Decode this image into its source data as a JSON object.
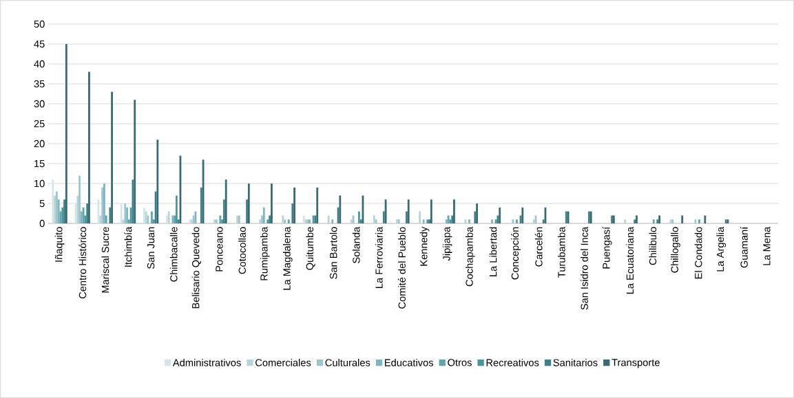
{
  "chart_data": {
    "type": "bar",
    "categories": [
      "Iñaquito",
      "Centro Histórico",
      "Mariscal Sucre",
      "Itchimbía",
      "San Juan",
      "Chimbacalle",
      "Belisario Quevedo",
      "Ponceano",
      "Cotocollao",
      "Rumipamba",
      "La Magdalena",
      "Quitumbe",
      "San Bartolo",
      "Solanda",
      "La Ferroviaria",
      "Comité del Pueblo",
      "Kennedy",
      "Jipijapa",
      "Cochapamba",
      "La Libertad",
      "Concepción",
      "Carcelén",
      "Turubamba",
      "San Isidro del Inca",
      "Puengasí",
      "La Ecuatoriana",
      "Chilibulo",
      "Chillogallo",
      "El Condado",
      "La Argelia",
      "Guamaní",
      "La Mena"
    ],
    "series": [
      {
        "name": "Administrativos",
        "color": "#d5e6e8",
        "values": [
          11,
          5,
          6,
          5,
          4,
          2,
          1,
          0,
          0,
          0,
          0,
          2,
          0,
          0,
          0,
          0,
          0,
          0,
          0,
          0,
          0,
          0,
          0,
          0,
          0,
          0,
          0,
          0,
          0,
          0,
          0,
          0
        ]
      },
      {
        "name": "Comerciales",
        "color": "#b9d4d8",
        "values": [
          7,
          7,
          2,
          1,
          3,
          3,
          1,
          1,
          2,
          1,
          2,
          1,
          2,
          1,
          2,
          1,
          3,
          0,
          1,
          0,
          0,
          1,
          0,
          0,
          0,
          1,
          0,
          1,
          0,
          0,
          0,
          0
        ]
      },
      {
        "name": "Culturales",
        "color": "#9cc6cc",
        "values": [
          8,
          12,
          9,
          5,
          2,
          0,
          2,
          1,
          2,
          2,
          1,
          1,
          0,
          2,
          1,
          1,
          0,
          0,
          0,
          0,
          1,
          2,
          0,
          0,
          0,
          0,
          0,
          1,
          1,
          0,
          0,
          0
        ]
      },
      {
        "name": "Educativos",
        "color": "#7fb6be",
        "values": [
          6,
          3,
          10,
          4,
          0,
          2,
          3,
          0,
          0,
          4,
          0,
          1,
          1,
          0,
          0,
          0,
          1,
          1,
          1,
          1,
          0,
          0,
          0,
          0,
          0,
          0,
          0,
          0,
          0,
          0,
          0,
          0
        ]
      },
      {
        "name": "Otros",
        "color": "#5fa5af",
        "values": [
          3,
          4,
          2,
          1,
          3,
          2,
          0,
          2,
          0,
          0,
          1,
          0,
          0,
          0,
          0,
          0,
          0,
          2,
          0,
          0,
          1,
          0,
          0,
          0,
          0,
          0,
          1,
          0,
          1,
          0,
          0,
          0
        ]
      },
      {
        "name": "Recreativos",
        "color": "#4a959f",
        "values": [
          4,
          2,
          0,
          4,
          1,
          7,
          0,
          1,
          0,
          1,
          0,
          2,
          0,
          3,
          0,
          0,
          1,
          1,
          0,
          1,
          0,
          0,
          0,
          0,
          0,
          0,
          0,
          0,
          0,
          0,
          0,
          0
        ]
      },
      {
        "name": "Sanitarios",
        "color": "#3f8088",
        "values": [
          6,
          5,
          4,
          11,
          8,
          1,
          9,
          6,
          6,
          2,
          5,
          2,
          4,
          1,
          3,
          3,
          1,
          2,
          3,
          2,
          2,
          1,
          3,
          3,
          2,
          1,
          1,
          0,
          0,
          1,
          0,
          0
        ]
      },
      {
        "name": "Transporte",
        "color": "#376a73",
        "values": [
          45,
          38,
          33,
          31,
          21,
          17,
          16,
          11,
          10,
          10,
          9,
          9,
          7,
          7,
          6,
          6,
          6,
          6,
          5,
          4,
          4,
          4,
          3,
          3,
          2,
          2,
          2,
          2,
          2,
          1,
          0,
          0
        ]
      }
    ],
    "ylim": [
      0,
      50
    ],
    "yticks": [
      0,
      5,
      10,
      15,
      20,
      25,
      30,
      35,
      40,
      45,
      50
    ],
    "grid": "y",
    "legend": "bottom"
  }
}
